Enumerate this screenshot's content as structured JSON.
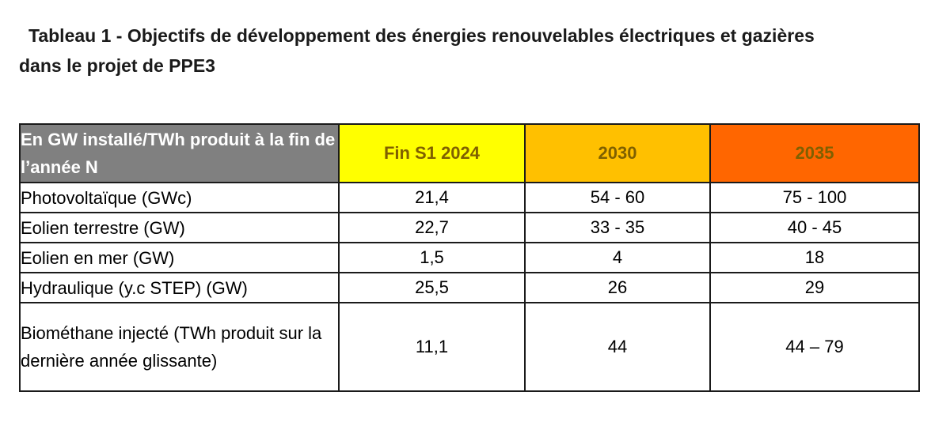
{
  "title": {
    "line1": "Tableau 1 - Objectifs de développement des énergies renouvelables électriques et gazières",
    "line2": "dans le projet de PPE3"
  },
  "table": {
    "corner_header": "En GW installé/TWh produit à la fin de l’année N",
    "columns": [
      {
        "label": "Fin S1 2024",
        "color": "#ffff00"
      },
      {
        "label": "2030",
        "color": "#ffc000"
      },
      {
        "label": "2035",
        "color": "#ff6600"
      }
    ],
    "rows": [
      {
        "label": "Photovoltaïque (GWc)",
        "values": [
          "21,4",
          "54 - 60",
          "75 - 100"
        ]
      },
      {
        "label": "Eolien terrestre (GW)",
        "values": [
          "22,7",
          "33 - 35",
          "40 - 45"
        ]
      },
      {
        "label": "Eolien en mer (GW)",
        "values": [
          "1,5",
          "4",
          "18"
        ]
      },
      {
        "label": "Hydraulique (y.c STEP) (GW)",
        "values": [
          "25,5",
          "26",
          "29"
        ]
      },
      {
        "label": "Biométhane injecté (TWh produit sur la dernière année glissante)",
        "values": [
          "11,1",
          "44",
          "44 – 79"
        ]
      }
    ]
  }
}
